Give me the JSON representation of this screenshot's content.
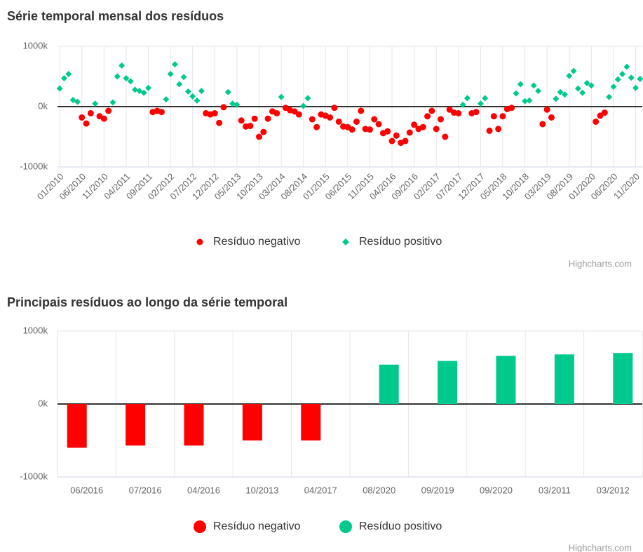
{
  "chart_data": [
    {
      "type": "scatter",
      "title": "Série temporal mensal dos resíduos",
      "credits": "Highcharts.com",
      "categories": [
        "01/2010",
        null,
        null,
        null,
        null,
        "06/2010",
        null,
        null,
        null,
        null,
        "11/2010",
        null,
        null,
        null,
        null,
        "04/2011",
        null,
        null,
        null,
        null,
        "09/2011",
        null,
        null,
        null,
        null,
        "02/2012",
        null,
        null,
        null,
        null,
        "07/2012",
        null,
        null,
        null,
        null,
        "12/2012",
        null,
        null,
        null,
        null,
        "05/2013",
        null,
        null,
        null,
        null,
        "10/2013",
        null,
        null,
        null,
        null,
        "03/2014",
        null,
        null,
        null,
        null,
        "08/2014",
        null,
        null,
        null,
        null,
        "01/2015",
        null,
        null,
        null,
        null,
        "06/2015",
        null,
        null,
        null,
        null,
        "11/2015",
        null,
        null,
        null,
        null,
        "04/2016",
        null,
        null,
        null,
        null,
        "09/2016",
        null,
        null,
        null,
        null,
        "02/2017",
        null,
        null,
        null,
        null,
        "07/2017",
        null,
        null,
        null,
        null,
        "12/2017",
        null,
        null,
        null,
        null,
        "05/2018",
        null,
        null,
        null,
        null,
        "10/2018",
        null,
        null,
        null,
        null,
        "03/2019",
        null,
        null,
        null,
        null,
        "08/2019",
        null,
        null,
        null,
        null,
        "01/2020",
        null,
        null,
        null,
        null,
        "06/2020",
        null,
        null,
        null,
        null,
        "11/2020",
        null
      ],
      "series": [
        {
          "name": "Resíduo negativo",
          "color": "#ff0000",
          "marker": "circle",
          "values": [
            null,
            null,
            null,
            null,
            null,
            -180000,
            -280000,
            -110000,
            null,
            -160000,
            -200000,
            -70000,
            null,
            null,
            null,
            null,
            null,
            null,
            null,
            null,
            null,
            -90000,
            -70000,
            -90000,
            null,
            null,
            null,
            null,
            null,
            null,
            null,
            null,
            null,
            -110000,
            -130000,
            -110000,
            -270000,
            -10000,
            null,
            null,
            null,
            -230000,
            -330000,
            -320000,
            -200000,
            -500000,
            -420000,
            -200000,
            -80000,
            -110000,
            null,
            -20000,
            -60000,
            -80000,
            -130000,
            null,
            null,
            -210000,
            -340000,
            -130000,
            -150000,
            -180000,
            -20000,
            -250000,
            -330000,
            -340000,
            -380000,
            -250000,
            -70000,
            -370000,
            -380000,
            -210000,
            -290000,
            -440000,
            -410000,
            -570000,
            -480000,
            -600000,
            -570000,
            -430000,
            -300000,
            -370000,
            -340000,
            -160000,
            -70000,
            -370000,
            -210000,
            -500000,
            -50000,
            -100000,
            -110000,
            null,
            null,
            -110000,
            -90000,
            null,
            null,
            -400000,
            -160000,
            -370000,
            -160000,
            -40000,
            -20000,
            null,
            null,
            null,
            null,
            null,
            null,
            -290000,
            -50000,
            -180000,
            null,
            null,
            null,
            null,
            null,
            null,
            null,
            null,
            null,
            -250000,
            -150000,
            -100000,
            null,
            null,
            null,
            null,
            null,
            null,
            null,
            null
          ]
        },
        {
          "name": "Resíduo positivo",
          "color": "#00c98d",
          "marker": "diamond",
          "values": [
            300000,
            470000,
            540000,
            110000,
            80000,
            null,
            null,
            null,
            50000,
            null,
            null,
            null,
            70000,
            500000,
            680000,
            470000,
            420000,
            280000,
            260000,
            230000,
            310000,
            null,
            null,
            null,
            120000,
            540000,
            700000,
            370000,
            490000,
            250000,
            170000,
            100000,
            260000,
            null,
            null,
            null,
            null,
            null,
            240000,
            50000,
            30000,
            null,
            null,
            null,
            null,
            null,
            null,
            null,
            null,
            null,
            160000,
            null,
            null,
            null,
            null,
            10000,
            140000,
            null,
            null,
            null,
            null,
            null,
            null,
            null,
            null,
            null,
            null,
            null,
            null,
            null,
            null,
            null,
            null,
            null,
            null,
            null,
            null,
            null,
            null,
            null,
            null,
            null,
            null,
            null,
            null,
            null,
            null,
            null,
            null,
            null,
            null,
            30000,
            140000,
            null,
            null,
            50000,
            140000,
            null,
            null,
            null,
            null,
            null,
            null,
            220000,
            370000,
            90000,
            100000,
            350000,
            260000,
            null,
            null,
            null,
            130000,
            240000,
            200000,
            510000,
            590000,
            300000,
            230000,
            390000,
            350000,
            null,
            null,
            null,
            160000,
            330000,
            450000,
            540000,
            660000,
            480000,
            310000,
            460000
          ]
        }
      ],
      "ylim": [
        -1000000,
        1000000
      ],
      "yticks": [
        {
          "value": -1000000,
          "label": "-1000k"
        },
        {
          "value": 0,
          "label": "0k"
        },
        {
          "value": 1000000,
          "label": "1000k"
        }
      ],
      "grid": true
    },
    {
      "type": "bar",
      "title": "Principais resíduos ao longo da série temporal",
      "credits": "Highcharts.com",
      "categories": [
        "06/2016",
        "07/2016",
        "04/2016",
        "10/2013",
        "04/2017",
        "08/2020",
        "09/2019",
        "09/2020",
        "03/2011",
        "03/2012"
      ],
      "series": [
        {
          "name": "Resíduo negativo",
          "color": "#ff0000",
          "marker": "circle",
          "values": [
            -600000,
            -570000,
            -570000,
            -500000,
            -500000,
            null,
            null,
            null,
            null,
            null
          ]
        },
        {
          "name": "Resíduo positivo",
          "color": "#00c98d",
          "marker": "circle",
          "values": [
            null,
            null,
            null,
            null,
            null,
            540000,
            590000,
            660000,
            680000,
            700000
          ]
        }
      ],
      "ylim": [
        -1000000,
        1000000
      ],
      "yticks": [
        {
          "value": -1000000,
          "label": "-1000k"
        },
        {
          "value": 0,
          "label": "0k"
        },
        {
          "value": 1000000,
          "label": "1000k"
        }
      ],
      "grid": true
    }
  ]
}
